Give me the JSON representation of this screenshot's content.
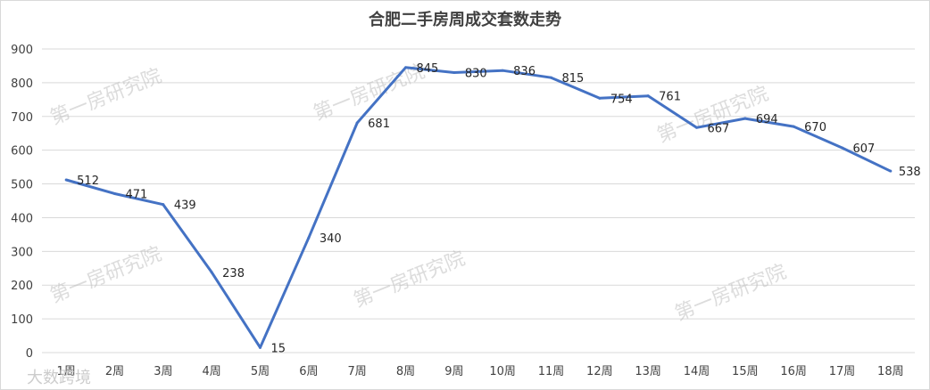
{
  "chart_data": {
    "type": "line",
    "title": "合肥二手房周成交套数走势",
    "categories": [
      "1周",
      "2周",
      "3周",
      "4周",
      "5周",
      "6周",
      "7周",
      "8周",
      "9周",
      "10周",
      "11周",
      "12周",
      "13周",
      "14周",
      "15周",
      "16周",
      "17周",
      "18周"
    ],
    "series": [
      {
        "values": [
          512,
          471,
          439,
          238,
          15,
          340,
          681,
          845,
          830,
          836,
          815,
          754,
          761,
          667,
          694,
          670,
          607,
          538
        ]
      }
    ],
    "ylim": [
      0,
      900
    ],
    "yticks": [
      0,
      100,
      200,
      300,
      400,
      500,
      600,
      700,
      800,
      900
    ],
    "xlabel": "",
    "ylabel": "",
    "grid": true,
    "line_color": "#4472C4"
  },
  "watermark": "第一房研究院",
  "corner_watermark": "大数跨境"
}
